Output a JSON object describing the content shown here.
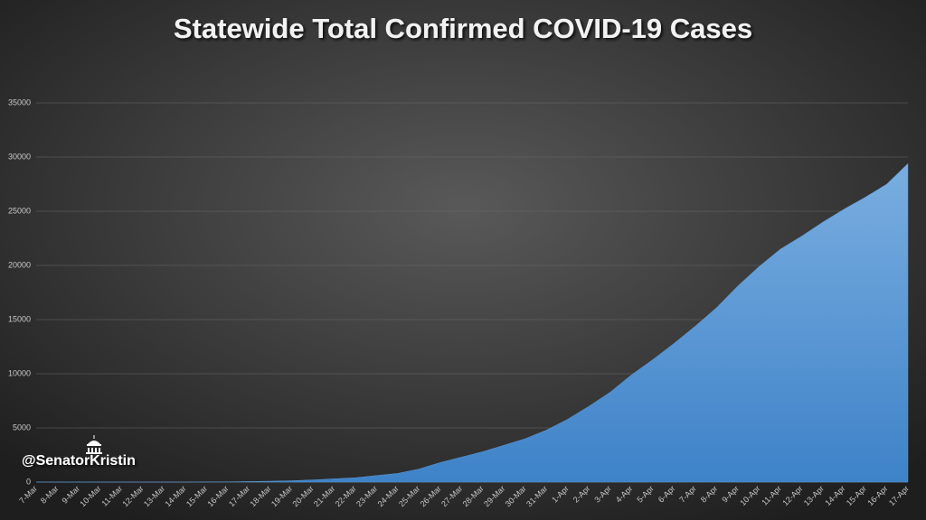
{
  "chart_data": {
    "type": "area",
    "title": "Statewide Total Confirmed COVID-19 Cases",
    "watermark": "@SenatorKristin",
    "categories": [
      "7-Mar",
      "8-Mar",
      "9-Mar",
      "10-Mar",
      "11-Mar",
      "12-Mar",
      "13-Mar",
      "14-Mar",
      "15-Mar",
      "16-Mar",
      "17-Mar",
      "18-Mar",
      "19-Mar",
      "20-Mar",
      "21-Mar",
      "22-Mar",
      "23-Mar",
      "24-Mar",
      "25-Mar",
      "26-Mar",
      "27-Mar",
      "28-Mar",
      "29-Mar",
      "30-Mar",
      "31-Mar",
      "1-Apr",
      "2-Apr",
      "3-Apr",
      "4-Apr",
      "5-Apr",
      "6-Apr",
      "7-Apr",
      "8-Apr",
      "9-Apr",
      "10-Apr",
      "11-Apr",
      "12-Apr",
      "13-Apr",
      "14-Apr",
      "15-Apr",
      "16-Apr",
      "17-Apr"
    ],
    "values": [
      0,
      0,
      0,
      0,
      0,
      0,
      0,
      0,
      10,
      20,
      50,
      80,
      120,
      200,
      300,
      400,
      600,
      800,
      1200,
      1800,
      2300,
      2800,
      3400,
      4000,
      4800,
      5800,
      7000,
      8300,
      9900,
      11300,
      12800,
      14400,
      16100,
      18100,
      19900,
      21500,
      22700,
      24000,
      25200,
      26300,
      27500,
      29400
    ],
    "color": "#5b9bd5",
    "ylim": [
      0,
      35000
    ],
    "yticks": [
      0,
      5000,
      10000,
      15000,
      20000,
      25000,
      30000,
      35000
    ],
    "grid": true
  }
}
